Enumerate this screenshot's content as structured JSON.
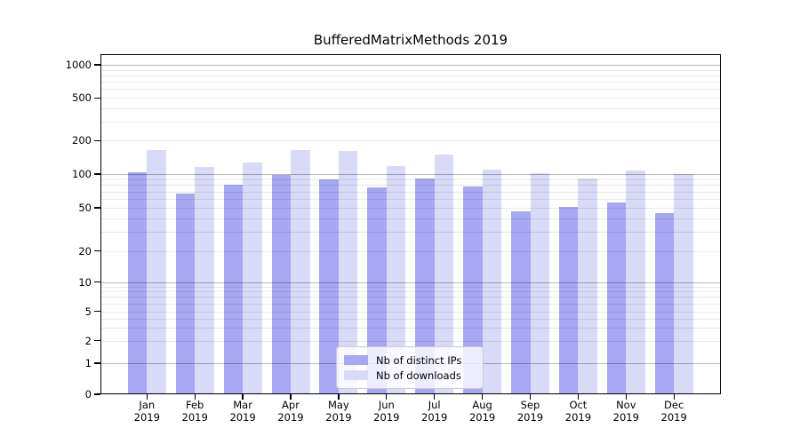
{
  "figure": {
    "title": "BufferedMatrixMethods 2019"
  },
  "colors": {
    "background": "#ffffff",
    "text": "#000000",
    "bar_distinct_ips": "#a7a7f3",
    "bar_downloads": "#d9d9f8",
    "grid_major": "#b8b8b8",
    "grid_minor": "#e9e9e9"
  },
  "chart_data": {
    "type": "bar",
    "title": "BufferedMatrixMethods 2019",
    "categories": [
      "Jan",
      "Feb",
      "Mar",
      "Apr",
      "May",
      "Jun",
      "Jul",
      "Aug",
      "Sep",
      "Oct",
      "Nov",
      "Dec"
    ],
    "x_tick_year": "2019",
    "series": [
      {
        "name": "Nb of distinct IPs",
        "color": "#a7a7f3",
        "values": [
          104,
          67,
          80,
          98,
          89,
          76,
          92,
          78,
          46,
          51,
          56,
          45
        ]
      },
      {
        "name": "Nb of downloads",
        "color": "#d9d9f8",
        "values": [
          165,
          116,
          128,
          165,
          160,
          118,
          149,
          110,
          101,
          91,
          107,
          100
        ]
      }
    ],
    "xlabel": "",
    "ylabel": "",
    "y_axis": {
      "scale": "symlog",
      "ticks": [
        0,
        1,
        2,
        5,
        10,
        20,
        50,
        100,
        200,
        500,
        1000
      ],
      "major_gridlines": [
        1,
        10,
        100,
        1000
      ],
      "minor_gridlines": [
        2,
        3,
        4,
        5,
        6,
        7,
        8,
        9,
        20,
        30,
        40,
        50,
        60,
        70,
        80,
        90,
        200,
        300,
        400,
        500,
        600,
        700,
        800,
        900
      ],
      "ylim": [
        0,
        1000
      ]
    },
    "grid": true,
    "legend": {
      "position": "lower-center",
      "entries": [
        "Nb of distinct IPs",
        "Nb of downloads"
      ]
    }
  }
}
